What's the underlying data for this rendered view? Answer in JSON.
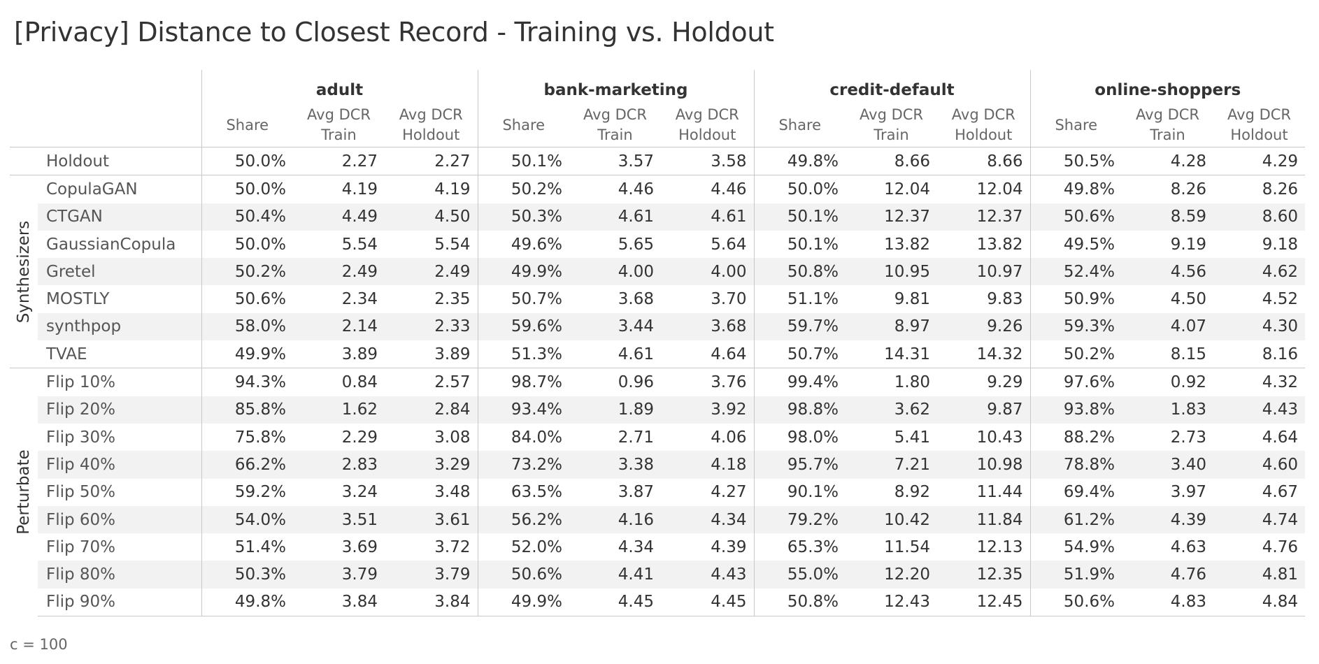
{
  "title": "[Privacy] Distance to Closest Record - Training vs. Holdout",
  "footnote": "c = 100",
  "chart_data": {
    "type": "table",
    "title": "[Privacy] Distance to Closest Record - Training vs. Holdout",
    "datasets": [
      "adult",
      "bank-marketing",
      "credit-default",
      "online-shoppers"
    ],
    "metric_labels": [
      {
        "line1": "Share",
        "line2": ""
      },
      {
        "line1": "Avg DCR",
        "line2": "Train"
      },
      {
        "line1": "Avg DCR",
        "line2": "Holdout"
      }
    ],
    "groups": [
      {
        "name": "",
        "rows": [
          {
            "label": "Holdout",
            "values": [
              "50.0%",
              "2.27",
              "2.27",
              "50.1%",
              "3.57",
              "3.58",
              "49.8%",
              "8.66",
              "8.66",
              "50.5%",
              "4.28",
              "4.29"
            ]
          }
        ]
      },
      {
        "name": "Synthesizers",
        "rows": [
          {
            "label": "CopulaGAN",
            "values": [
              "50.0%",
              "4.19",
              "4.19",
              "50.2%",
              "4.46",
              "4.46",
              "50.0%",
              "12.04",
              "12.04",
              "49.8%",
              "8.26",
              "8.26"
            ]
          },
          {
            "label": "CTGAN",
            "values": [
              "50.4%",
              "4.49",
              "4.50",
              "50.3%",
              "4.61",
              "4.61",
              "50.1%",
              "12.37",
              "12.37",
              "50.6%",
              "8.59",
              "8.60"
            ]
          },
          {
            "label": "GaussianCopula",
            "values": [
              "50.0%",
              "5.54",
              "5.54",
              "49.6%",
              "5.65",
              "5.64",
              "50.1%",
              "13.82",
              "13.82",
              "49.5%",
              "9.19",
              "9.18"
            ]
          },
          {
            "label": "Gretel",
            "values": [
              "50.2%",
              "2.49",
              "2.49",
              "49.9%",
              "4.00",
              "4.00",
              "50.8%",
              "10.95",
              "10.97",
              "52.4%",
              "4.56",
              "4.62"
            ]
          },
          {
            "label": "MOSTLY",
            "values": [
              "50.6%",
              "2.34",
              "2.35",
              "50.7%",
              "3.68",
              "3.70",
              "51.1%",
              "9.81",
              "9.83",
              "50.9%",
              "4.50",
              "4.52"
            ]
          },
          {
            "label": "synthpop",
            "values": [
              "58.0%",
              "2.14",
              "2.33",
              "59.6%",
              "3.44",
              "3.68",
              "59.7%",
              "8.97",
              "9.26",
              "59.3%",
              "4.07",
              "4.30"
            ]
          },
          {
            "label": "TVAE",
            "values": [
              "49.9%",
              "3.89",
              "3.89",
              "51.3%",
              "4.61",
              "4.64",
              "50.7%",
              "14.31",
              "14.32",
              "50.2%",
              "8.15",
              "8.16"
            ]
          }
        ]
      },
      {
        "name": "Perturbate",
        "rows": [
          {
            "label": "Flip 10%",
            "values": [
              "94.3%",
              "0.84",
              "2.57",
              "98.7%",
              "0.96",
              "3.76",
              "99.4%",
              "1.80",
              "9.29",
              "97.6%",
              "0.92",
              "4.32"
            ]
          },
          {
            "label": "Flip 20%",
            "values": [
              "85.8%",
              "1.62",
              "2.84",
              "93.4%",
              "1.89",
              "3.92",
              "98.8%",
              "3.62",
              "9.87",
              "93.8%",
              "1.83",
              "4.43"
            ]
          },
          {
            "label": "Flip 30%",
            "values": [
              "75.8%",
              "2.29",
              "3.08",
              "84.0%",
              "2.71",
              "4.06",
              "98.0%",
              "5.41",
              "10.43",
              "88.2%",
              "2.73",
              "4.64"
            ]
          },
          {
            "label": "Flip 40%",
            "values": [
              "66.2%",
              "2.83",
              "3.29",
              "73.2%",
              "3.38",
              "4.18",
              "95.7%",
              "7.21",
              "10.98",
              "78.8%",
              "3.40",
              "4.60"
            ]
          },
          {
            "label": "Flip 50%",
            "values": [
              "59.2%",
              "3.24",
              "3.48",
              "63.5%",
              "3.87",
              "4.27",
              "90.1%",
              "8.92",
              "11.44",
              "69.4%",
              "3.97",
              "4.67"
            ]
          },
          {
            "label": "Flip 60%",
            "values": [
              "54.0%",
              "3.51",
              "3.61",
              "56.2%",
              "4.16",
              "4.34",
              "79.2%",
              "10.42",
              "11.84",
              "61.2%",
              "4.39",
              "4.74"
            ]
          },
          {
            "label": "Flip 70%",
            "values": [
              "51.4%",
              "3.69",
              "3.72",
              "52.0%",
              "4.34",
              "4.39",
              "65.3%",
              "11.54",
              "12.13",
              "54.9%",
              "4.63",
              "4.76"
            ]
          },
          {
            "label": "Flip 80%",
            "values": [
              "50.3%",
              "3.79",
              "3.79",
              "50.6%",
              "4.41",
              "4.43",
              "55.0%",
              "12.20",
              "12.35",
              "51.9%",
              "4.76",
              "4.81"
            ]
          },
          {
            "label": "Flip 90%",
            "values": [
              "49.8%",
              "3.84",
              "3.84",
              "49.9%",
              "4.45",
              "4.45",
              "50.8%",
              "12.43",
              "12.45",
              "50.6%",
              "4.83",
              "4.84"
            ]
          }
        ]
      }
    ]
  }
}
